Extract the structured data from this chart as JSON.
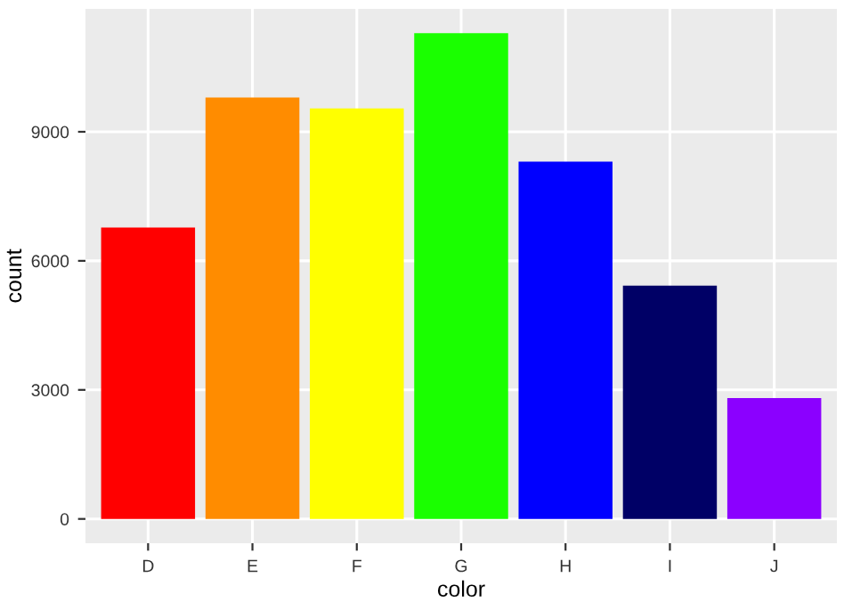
{
  "chart_data": {
    "type": "bar",
    "xlabel": "color",
    "ylabel": "count",
    "categories": [
      "D",
      "E",
      "F",
      "G",
      "H",
      "I",
      "J"
    ],
    "values": [
      6775,
      9797,
      9542,
      11292,
      8304,
      5422,
      2808
    ],
    "colors": [
      "#ff0000",
      "#ff8c00",
      "#ffff00",
      "#1aff00",
      "#0000ff",
      "#000066",
      "#8b00ff"
    ],
    "ylim": [
      -565,
      11857
    ],
    "yticks": [
      0,
      3000,
      6000,
      9000
    ],
    "grid": true,
    "legend": false
  }
}
